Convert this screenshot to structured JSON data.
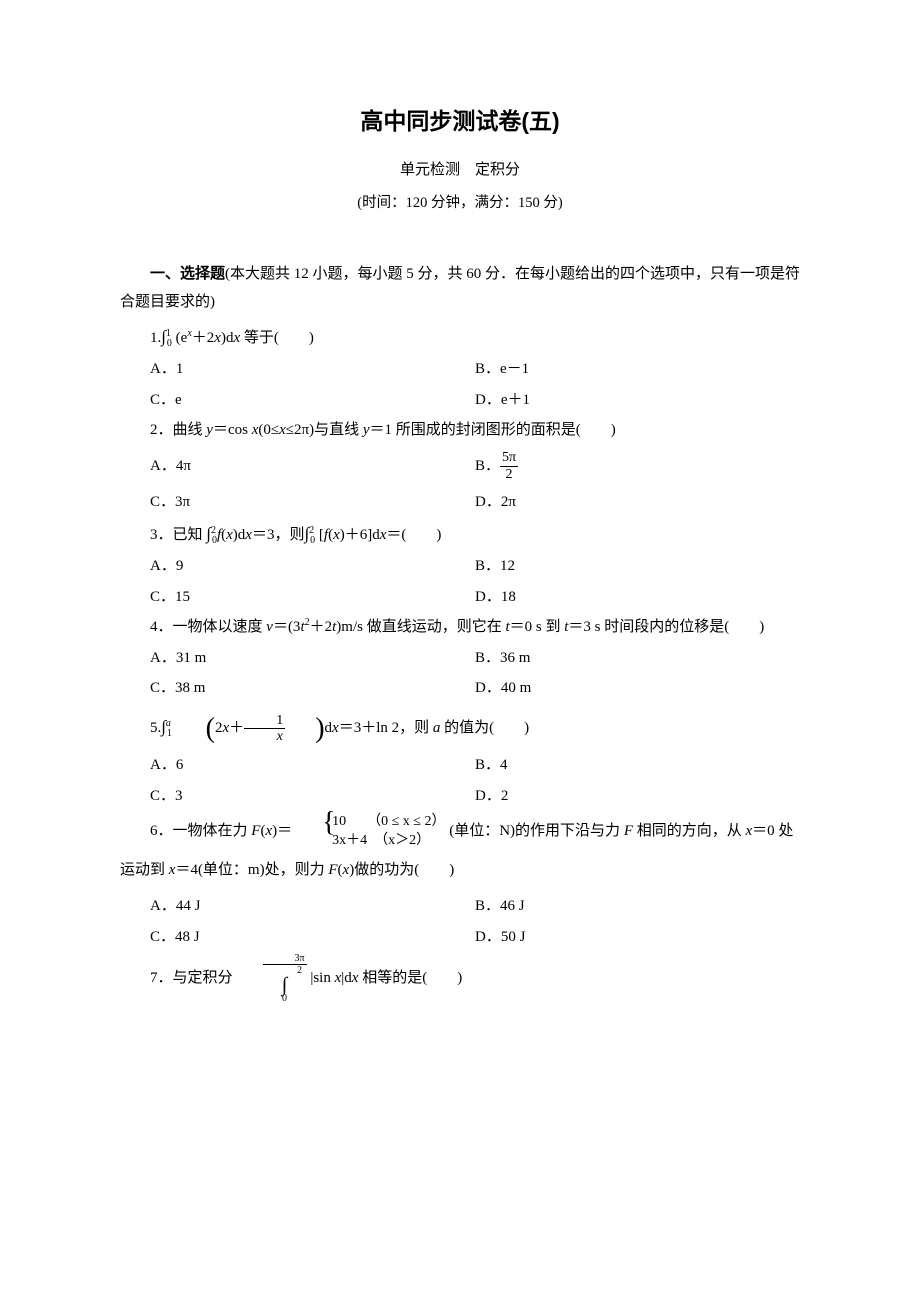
{
  "header": {
    "title": "高中同步测试卷(五)",
    "subtitle": "单元检测　定积分",
    "time": "(时间：120 分钟，满分：150 分)"
  },
  "section1": {
    "label_bold": "一、选择题",
    "label_rest": "(本大题共 12 小题，每小题 5 分，共 60 分．在每小题给出的四个选项中，只有一项是符合题目要求的)"
  },
  "q1": {
    "stem_tail": " 等于(　　)",
    "A": "A．1",
    "B": "B．e－1",
    "C": "C．e",
    "D": "D．e＋1"
  },
  "q2": {
    "prefix": "2．曲线 ",
    "mid1": "(0≤",
    "mid2": "≤2π)与直线 ",
    "tail": "＝1 所围成的封闭图形的面积是(　　)",
    "A": "A．4π",
    "B_pre": "B．",
    "B_num": "5π",
    "B_den": "2",
    "C": "C．3π",
    "D": "D．2π"
  },
  "q3": {
    "prefix": "3．已知 ",
    "mid": "＝3，则",
    "tail": "＝(　　)",
    "A": "A．9",
    "B": "B．12",
    "C": "C．15",
    "D": "D．18"
  },
  "q4": {
    "prefix": "4．一物体以速度 ",
    "mid": ")m/s 做直线运动，则它在 ",
    "mid2": "＝0 s 到 ",
    "tail": "＝3 s 时间段内的位移是(　　)",
    "A": "A．31 m",
    "B": "B．36 m",
    "C": "C．38 m",
    "D": "D．40 m"
  },
  "q5": {
    "mid": "＝3＋ln 2，则 ",
    "tail": " 的值为(　　)",
    "A": "A．6",
    "B": "B．4",
    "C": "C．3",
    "D": "D．2"
  },
  "q6": {
    "prefix": "6．一物体在力 ",
    "eq": ")＝",
    "p1": "10　　（0 ≤ x ≤ 2）",
    "p2": "3x＋4　（x＞2）",
    "mid": " (单位：N)的作用下沿与力 ",
    "mid2": " 相同的方向，从 ",
    "mid3": "＝0 处运动到 ",
    "mid4": "＝4(单位：m)处，则力 ",
    "tail": ")做的功为(　　)",
    "A": "A．44 J",
    "B": "B．46 J",
    "C": "C．48 J",
    "D": "D．50 J"
  },
  "q7": {
    "prefix": "7．与定积分",
    "top_num": "3π",
    "top_den": "2",
    "bot": "0",
    "tail": " 相等的是(　　)"
  },
  "colors": {
    "text": "#000000",
    "background": "#ffffff"
  }
}
